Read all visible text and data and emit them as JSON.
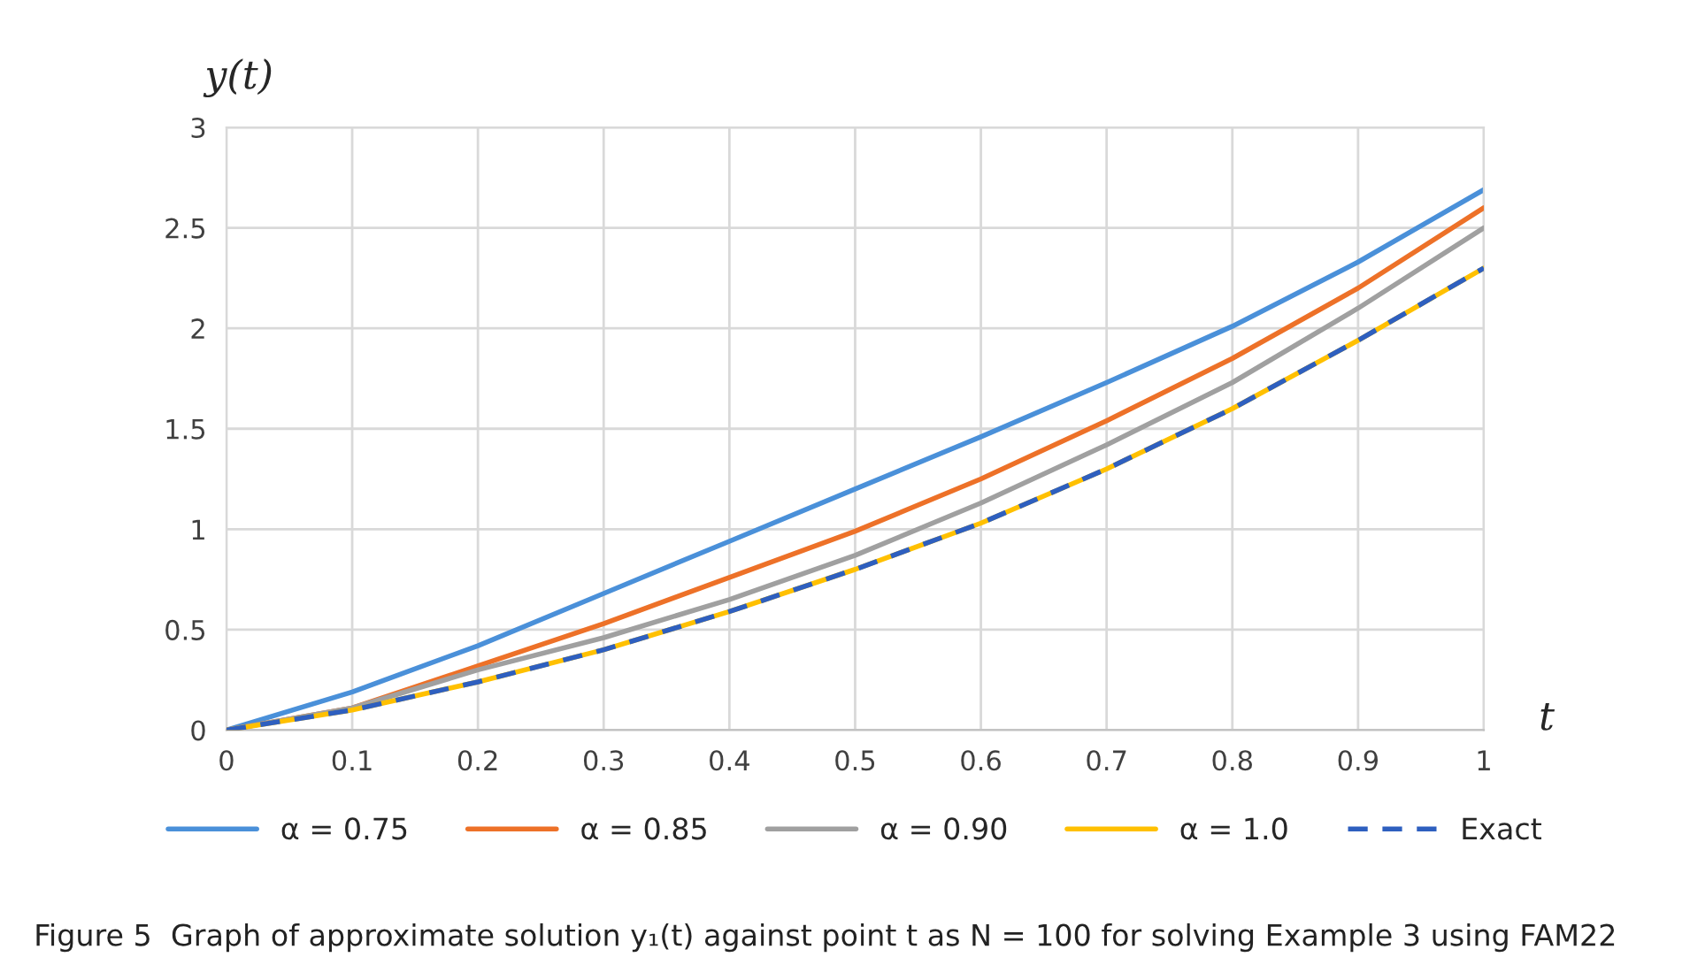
{
  "chart_data": {
    "type": "line",
    "ylabel": "y(t)",
    "xlabel": "t",
    "x": [
      0,
      0.1,
      0.2,
      0.3,
      0.4,
      0.5,
      0.6,
      0.7,
      0.8,
      0.9,
      1
    ],
    "series": [
      {
        "name": "α = 0.75",
        "color": "#4a90d9",
        "values": [
          0,
          0.19,
          0.42,
          0.68,
          0.94,
          1.2,
          1.46,
          1.73,
          2.01,
          2.33,
          2.69
        ]
      },
      {
        "name": "α = 0.85",
        "color": "#ed7128",
        "values": [
          0,
          0.11,
          0.32,
          0.53,
          0.76,
          0.99,
          1.25,
          1.54,
          1.85,
          2.2,
          2.6
        ]
      },
      {
        "name": "α = 0.90",
        "color": "#a0a0a0",
        "values": [
          0,
          0.11,
          0.3,
          0.46,
          0.65,
          0.87,
          1.13,
          1.42,
          1.73,
          2.1,
          2.5
        ]
      },
      {
        "name": "α = 1.0",
        "color": "#ffc000",
        "values": [
          0,
          0.1,
          0.24,
          0.4,
          0.59,
          0.8,
          1.03,
          1.3,
          1.6,
          1.94,
          2.3
        ]
      },
      {
        "name": "Exact",
        "color": "#2e5fbf",
        "line_style": "dashed",
        "values": [
          0,
          0.1,
          0.24,
          0.4,
          0.59,
          0.8,
          1.03,
          1.3,
          1.6,
          1.94,
          2.3
        ]
      }
    ],
    "xlim": [
      0,
      1
    ],
    "xticks": [
      0,
      0.1,
      0.2,
      0.3,
      0.4,
      0.5,
      0.6,
      0.7,
      0.8,
      0.9,
      1
    ],
    "ylim": [
      0,
      3
    ],
    "yticks": [
      0,
      0.5,
      1,
      1.5,
      2,
      2.5,
      3
    ],
    "grid": true,
    "legend": "bottom",
    "line_style": "solid",
    "marker": "none",
    "annotations": [
      "Figure 5  Graph of approximate solution y₁(t) against point t as N = 100 for solving Example 3 using FAM22"
    ]
  }
}
